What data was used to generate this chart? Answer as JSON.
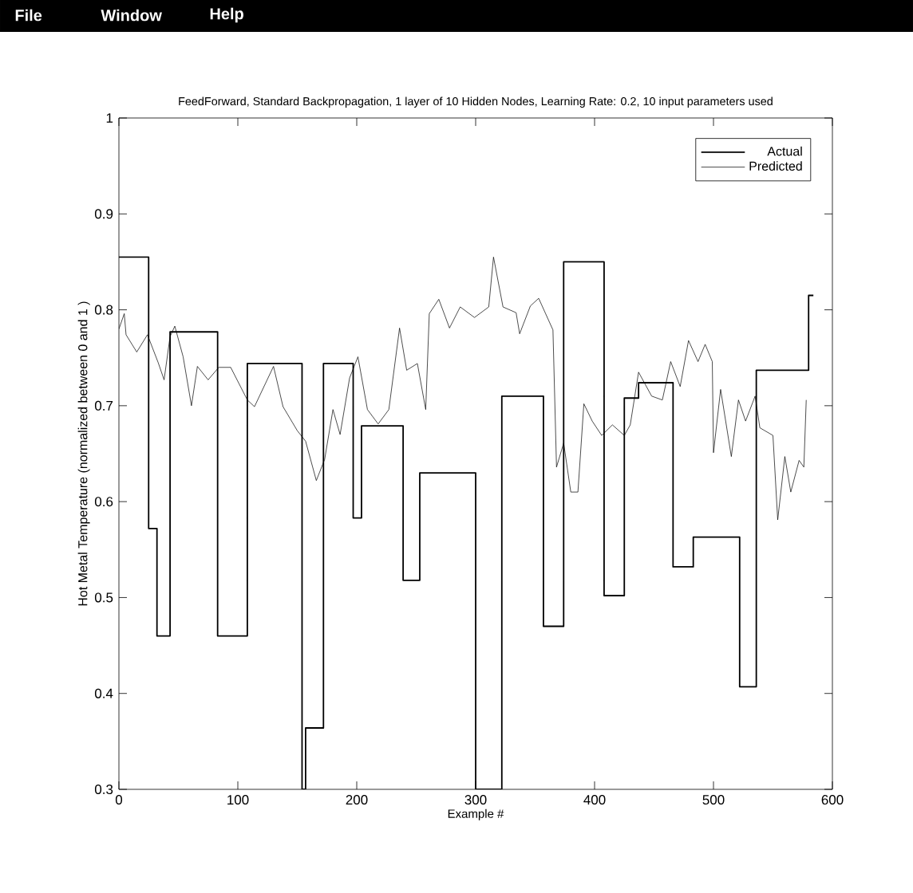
{
  "chart_data": {
    "type": "line",
    "title": "FeedForward, Standard Backpropagation, 1 layer of 10 Hidden Nodes, Learning Rate: 0.2, 10 input parameters used",
    "xlabel": "Example #",
    "ylabel": "Hot Metal Temperature (normalized between 0 and 1 )",
    "annotations": [
      "File",
      "Window",
      "Help"
    ],
    "xlim": [
      0,
      600
    ],
    "xticks": [
      0,
      100,
      200,
      300,
      400,
      500,
      600
    ],
    "ylim": [
      0.3,
      1
    ],
    "yticks": [
      0.3,
      0.4,
      0.5,
      0.6,
      0.7,
      0.8,
      0.9,
      1
    ],
    "legend": "top right",
    "series": [
      {
        "name": "Actual",
        "type": "step",
        "color": "#000000",
        "x": [
          0,
          25,
          32,
          43,
          83,
          108,
          154,
          157,
          172,
          197,
          204,
          239,
          253,
          300,
          322,
          357,
          374,
          408,
          425,
          437,
          466,
          483,
          522,
          536,
          580,
          584
        ],
        "values": [
          0.855,
          0.572,
          0.46,
          0.777,
          0.46,
          0.744,
          0.3,
          0.364,
          0.744,
          0.583,
          0.679,
          0.518,
          0.63,
          0.3,
          0.71,
          0.47,
          0.85,
          0.502,
          0.708,
          0.724,
          0.532,
          0.563,
          0.407,
          0.737,
          0.815,
          0.815
        ]
      },
      {
        "name": "Predicted",
        "color": "#000000",
        "x": [
          0,
          4.5,
          6,
          15,
          24,
          33,
          38,
          43,
          47,
          54,
          61,
          66,
          75,
          84,
          94,
          108,
          114,
          130,
          138,
          150,
          157,
          166,
          173,
          180,
          186,
          194,
          201,
          209,
          218,
          227,
          236,
          242,
          251,
          258,
          261,
          269,
          278,
          287,
          299,
          311,
          315,
          323,
          334,
          337,
          346,
          353,
          365,
          368,
          374,
          380,
          386,
          391,
          398,
          406,
          415,
          425,
          430,
          437,
          448,
          457,
          464,
          472,
          479,
          487,
          493,
          499,
          500,
          506,
          515,
          521,
          527,
          535,
          539,
          550,
          554,
          560,
          565,
          572,
          576,
          578
        ],
        "values": [
          0.78,
          0.796,
          0.774,
          0.756,
          0.774,
          0.745,
          0.727,
          0.772,
          0.783,
          0.751,
          0.7,
          0.741,
          0.727,
          0.74,
          0.74,
          0.706,
          0.699,
          0.741,
          0.699,
          0.674,
          0.663,
          0.622,
          0.644,
          0.696,
          0.67,
          0.729,
          0.751,
          0.696,
          0.681,
          0.696,
          0.781,
          0.737,
          0.744,
          0.696,
          0.796,
          0.811,
          0.781,
          0.803,
          0.792,
          0.803,
          0.855,
          0.803,
          0.797,
          0.775,
          0.804,
          0.812,
          0.779,
          0.636,
          0.661,
          0.61,
          0.61,
          0.702,
          0.684,
          0.669,
          0.68,
          0.669,
          0.68,
          0.735,
          0.71,
          0.706,
          0.746,
          0.72,
          0.768,
          0.746,
          0.764,
          0.746,
          0.651,
          0.717,
          0.647,
          0.706,
          0.684,
          0.71,
          0.677,
          0.669,
          0.581,
          0.647,
          0.61,
          0.643,
          0.636,
          0.706
        ]
      }
    ]
  }
}
